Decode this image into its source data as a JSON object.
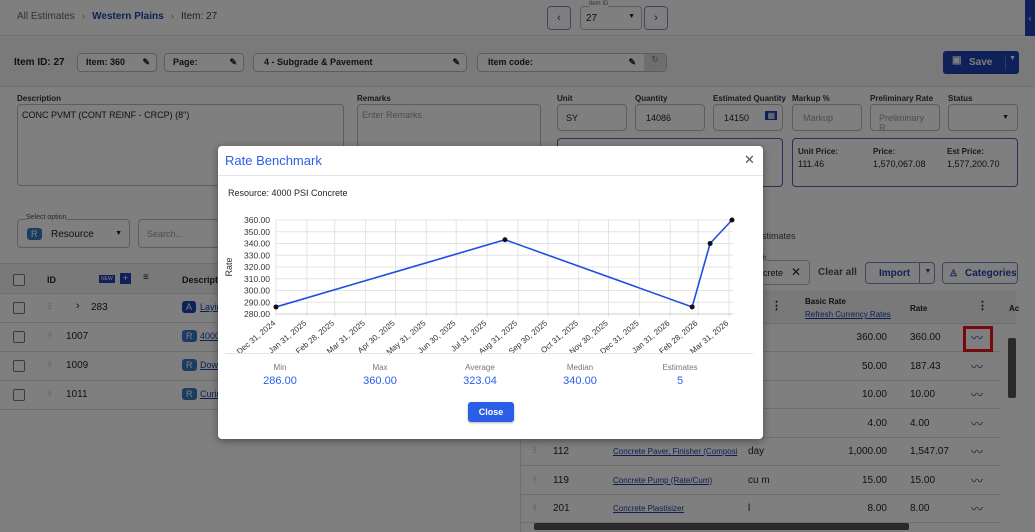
{
  "breadcrumb": [
    {
      "label": "All Estimates"
    },
    {
      "label": "Western Plains"
    },
    {
      "label": "Item: 27"
    }
  ],
  "item_nav": {
    "label": "Item ID",
    "value": "27"
  },
  "header": {
    "item_id": "Item ID: 27",
    "item": "Item: 360",
    "page": "Page:",
    "section": "4 - Subgrade & Pavement",
    "item_code": "Item code:",
    "save": "Save"
  },
  "fields": {
    "description_label": "Description",
    "description": "CONC PVMT (CONT REINF - CRCP) (8\")",
    "remarks_label": "Remarks",
    "remarks_placeholder": "Enter Remarks",
    "unit_label": "Unit",
    "unit": "SY",
    "quantity_label": "Quantity",
    "quantity": "14086",
    "est_qty_label": "Estimated Quantity",
    "est_qty": "14150",
    "markup_label": "Markup %",
    "markup_placeholder": "Markup",
    "prelim_label": "Preliminary Rate",
    "prelim_placeholder": "Preliminary R",
    "status_label": "Status",
    "unit_price_label": "Unit Price:",
    "unit_price": "111.46",
    "price_label": "Price:",
    "price": "1,570,067.08",
    "est_price_label": "Est Price:",
    "est_price": "1,577,200.70"
  },
  "filter": {
    "select_label": "Select option",
    "select_chip": "R",
    "select_value": "Resource",
    "search_placeholder": "Search...",
    "tab_partial": "stimates",
    "search_label_partial": "ch",
    "search_chip_partial": "crete",
    "clear_all": "Clear all",
    "import": "Import",
    "categories": "Categories"
  },
  "left_table": {
    "columns": [
      "ID",
      "Descriptio"
    ],
    "new_badge": "NEW",
    "rows": [
      {
        "id": "283",
        "chip": "A",
        "desc": "Layin"
      },
      {
        "id": "1007",
        "chip": "R",
        "desc": "4000"
      },
      {
        "id": "1009",
        "chip": "R",
        "desc": "Dowe"
      },
      {
        "id": "1011",
        "chip": "R",
        "desc": "Curin"
      }
    ]
  },
  "right_table": {
    "basic_rate": "Basic Rate",
    "refresh": "Refresh Currency Rates",
    "rate": "Rate",
    "actions_partial": "Ac",
    "rows": [
      {
        "id": "",
        "desc": "",
        "unit": "",
        "basic": "360.00",
        "rate": "360.00"
      },
      {
        "id": "",
        "desc": "",
        "unit": "",
        "basic": "50.00",
        "rate": "187.43"
      },
      {
        "id": "",
        "desc": "",
        "unit": "",
        "basic": "10.00",
        "rate": "10.00"
      },
      {
        "id": "",
        "desc": "",
        "unit": "",
        "basic": "4.00",
        "rate": "4.00"
      },
      {
        "id": "112",
        "desc": "Concrete Paver, Finisher (Composi",
        "unit": "day",
        "basic": "1,000.00",
        "rate": "1,547.07"
      },
      {
        "id": "119",
        "desc": "Concrete Pump (Rate/Cum)",
        "unit": "cu m",
        "basic": "15.00",
        "rate": "15.00"
      },
      {
        "id": "201",
        "desc": "Concrete Plastisizer",
        "unit": "l",
        "basic": "8.00",
        "rate": "8.00"
      }
    ]
  },
  "modal": {
    "title": "Rate Benchmark",
    "resource": "Resource: 4000 PSI Concrete",
    "close": "Close",
    "stats": [
      {
        "label": "Min",
        "value": "286.00"
      },
      {
        "label": "Max",
        "value": "360.00"
      },
      {
        "label": "Average",
        "value": "323.04"
      },
      {
        "label": "Median",
        "value": "340.00"
      },
      {
        "label": "Estimates",
        "value": "5"
      }
    ]
  },
  "colors": {
    "accent": "#1f43b0",
    "line": "#1f4fe0",
    "highlight": "#e8141c"
  },
  "chart_data": {
    "type": "line",
    "title": "",
    "xlabel": "",
    "ylabel": "Rate",
    "ylim": [
      280,
      360
    ],
    "yticks": [
      "280.00",
      "290.00",
      "300.00",
      "310.00",
      "320.00",
      "330.00",
      "340.00",
      "350.00",
      "360.00"
    ],
    "xticks": [
      "Dec 31, 2024",
      "Jan 31, 2025",
      "Feb 28, 2025",
      "Mar 31, 2025",
      "Apr 30, 2025",
      "May 31, 2025",
      "Jun 30, 2025",
      "Jul 31, 2025",
      "Aug 31, 2025",
      "Sep 30, 2025",
      "Oct 31, 2025",
      "Nov 30, 2025",
      "Dec 31, 2025",
      "Jan 31, 2026",
      "Feb 28, 2026",
      "Mar 31, 2026"
    ],
    "xtick_dates": [
      "2024-12-31",
      "2025-01-31",
      "2025-02-28",
      "2025-03-31",
      "2025-04-30",
      "2025-05-31",
      "2025-06-30",
      "2025-07-31",
      "2025-08-31",
      "2025-09-30",
      "2025-10-31",
      "2025-11-30",
      "2025-12-31",
      "2026-01-31",
      "2026-02-28",
      "2026-03-31"
    ],
    "grid": true,
    "points": [
      {
        "x": "2024-12-31",
        "y": 286
      },
      {
        "x": "2025-08-18",
        "y": 343.2
      },
      {
        "x": "2026-02-22",
        "y": 286
      },
      {
        "x": "2026-03-12",
        "y": 340
      },
      {
        "x": "2026-04-03",
        "y": 360
      }
    ]
  }
}
